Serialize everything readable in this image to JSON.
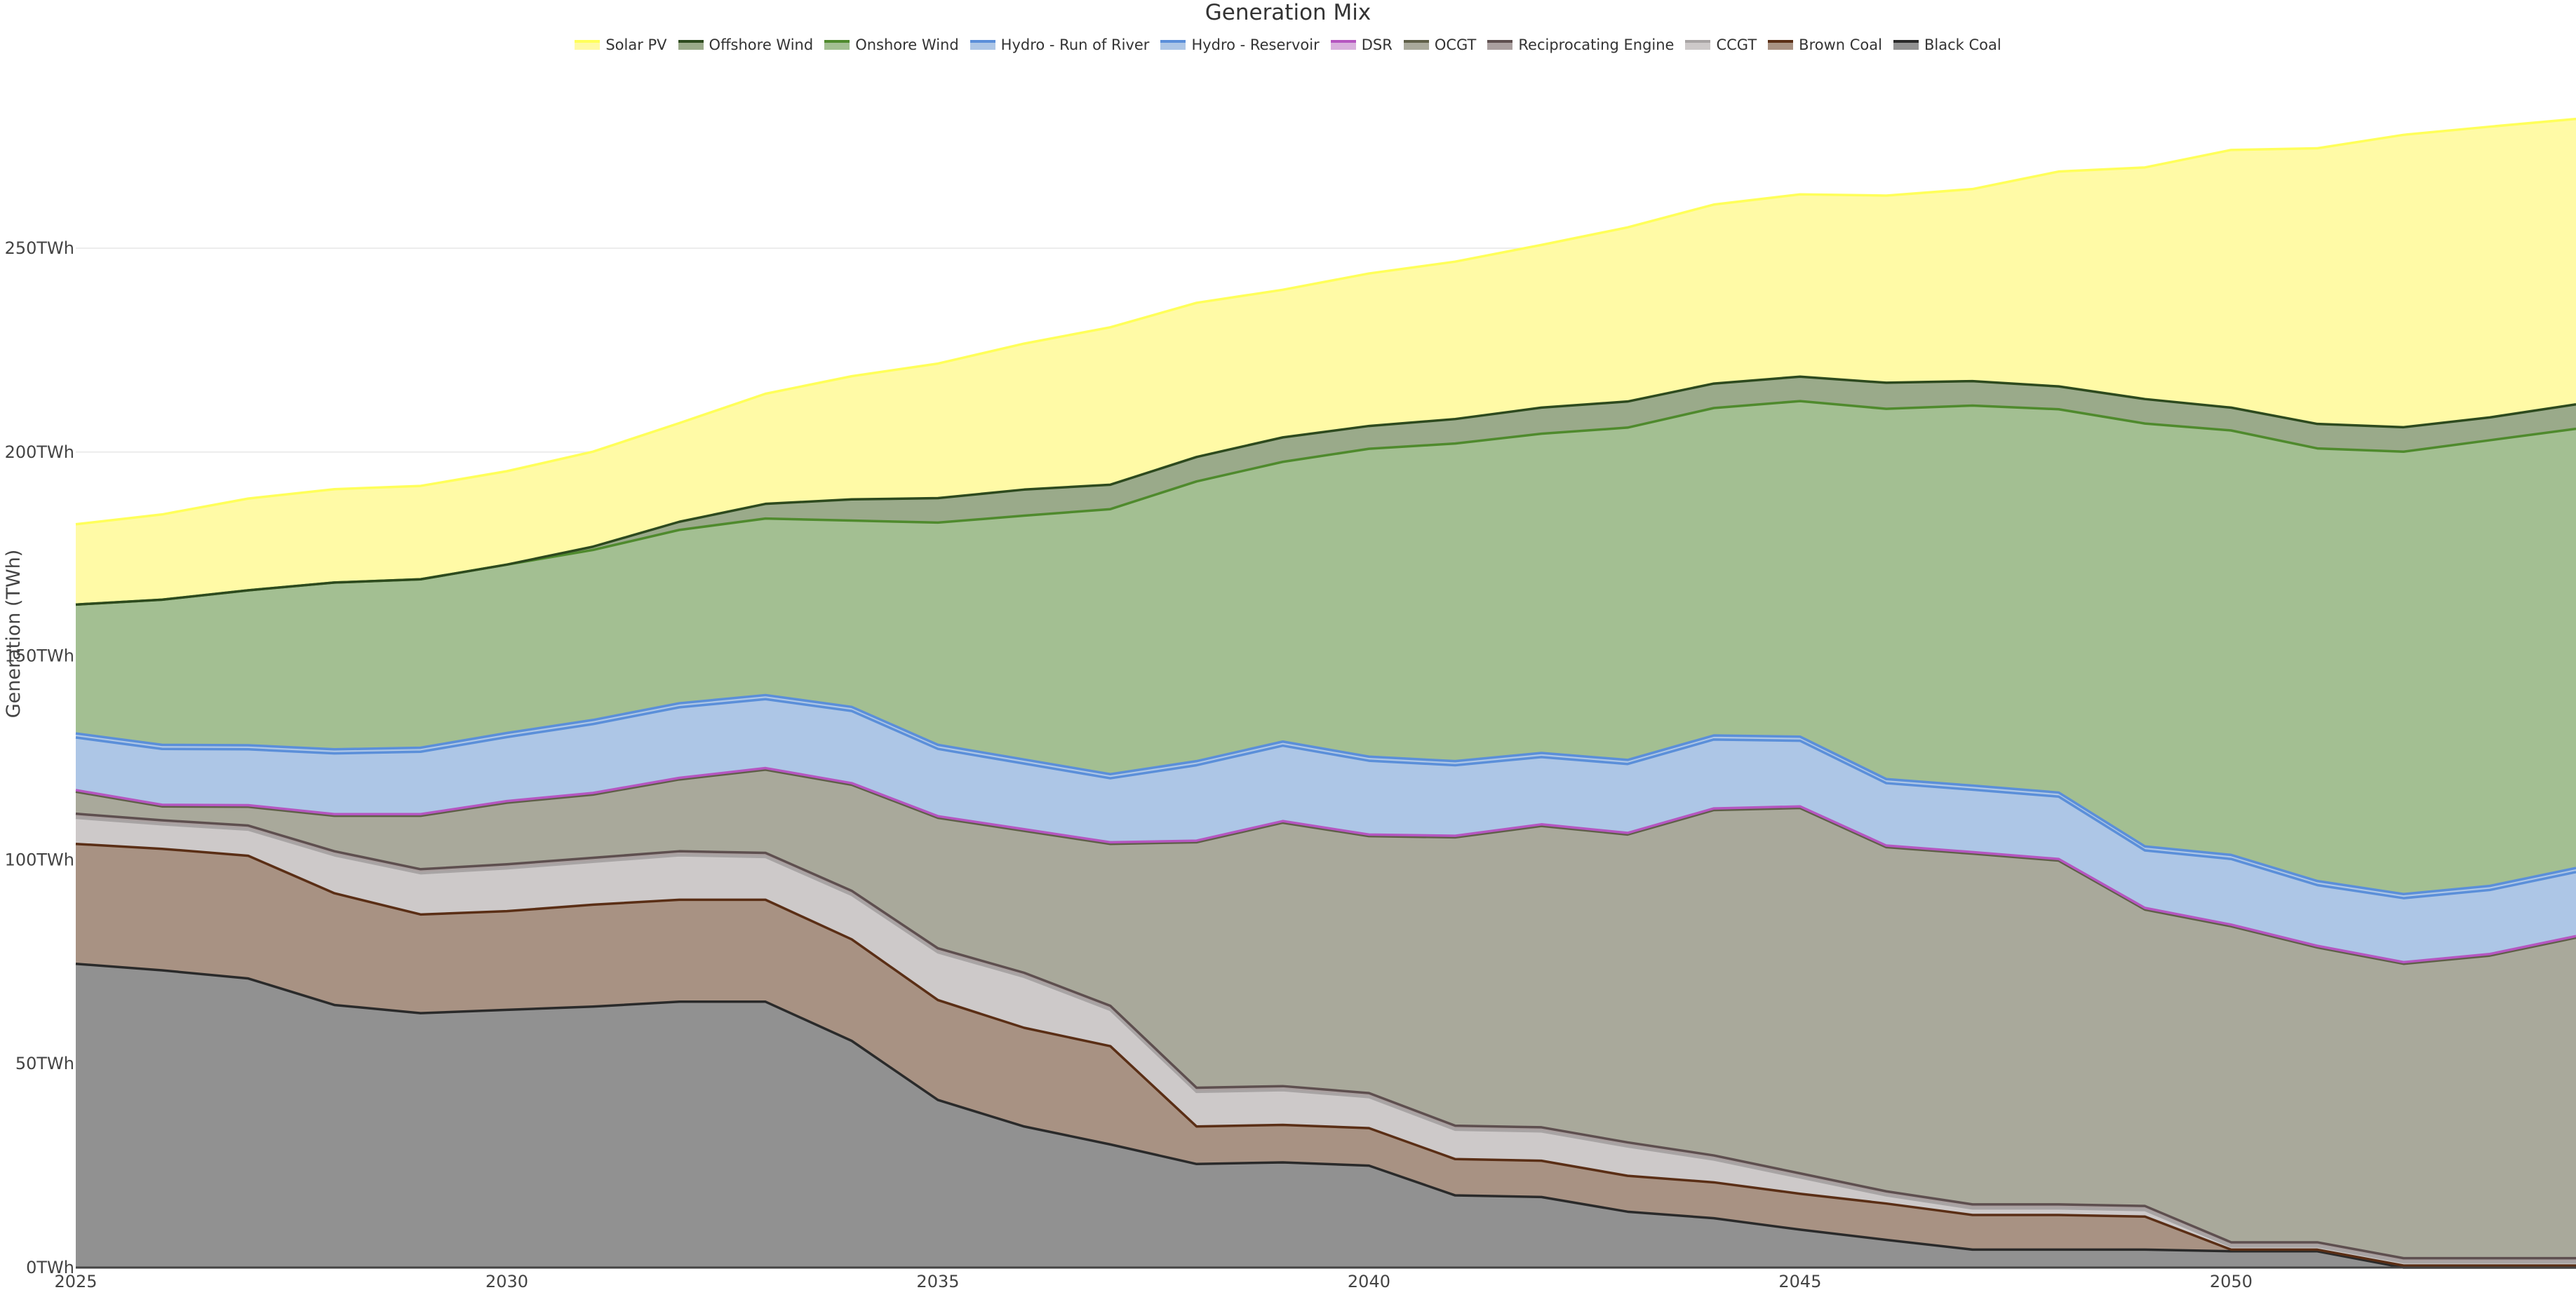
{
  "chart_data": {
    "type": "area",
    "stacked": true,
    "title": "Generation Mix",
    "xlabel": "",
    "ylabel": "Generation (TWh)",
    "ylim": [
      0,
      311
    ],
    "xlim": [
      2025,
      2054
    ],
    "grid": true,
    "legend_position": "top-center",
    "x_ticks": [
      2025,
      2030,
      2035,
      2040,
      2045,
      2050
    ],
    "x_tick_labels": [
      "2025",
      "2030",
      "2035",
      "2040",
      "2045",
      "2050"
    ],
    "y_ticks": [
      0,
      50,
      100,
      150,
      200,
      250
    ],
    "y_tick_labels": [
      "0TWh",
      "50TWh",
      "100TWh",
      "150TWh",
      "200TWh",
      "250TWh"
    ],
    "x": [
      2025,
      2026,
      2027,
      2028,
      2029,
      2030,
      2031,
      2032,
      2033,
      2034,
      2035,
      2036,
      2037,
      2038,
      2039,
      2040,
      2041,
      2042,
      2043,
      2044,
      2045,
      2046,
      2047,
      2048,
      2049,
      2050,
      2051,
      2052,
      2053,
      2054
    ],
    "series": [
      {
        "name": "Black Coal",
        "line": "#2a2a2a",
        "fill": "#919191",
        "values": [
          74.5,
          72.9,
          70.9,
          64.4,
          62.4,
          63.2,
          64.0,
          65.2,
          65.2,
          55.6,
          41.1,
          34.6,
          30.2,
          25.4,
          25.8,
          25.0,
          17.7,
          17.3,
          13.7,
          12.1,
          9.3,
          6.8,
          4.4,
          4.4,
          4.4,
          4.0,
          4.0,
          0,
          0,
          0
        ]
      },
      {
        "name": "Brown Coal",
        "line": "#5a2e15",
        "fill": "#a89283",
        "values": [
          29.4,
          29.8,
          30.1,
          27.4,
          24.2,
          24.2,
          25.0,
          25.0,
          25.0,
          24.9,
          24.5,
          24.2,
          24.1,
          9.2,
          9.2,
          9.2,
          8.9,
          8.9,
          8.8,
          8.8,
          8.8,
          8.9,
          8.5,
          8.5,
          8.1,
          0.4,
          0.4,
          0.5,
          0.5,
          0.5
        ]
      },
      {
        "name": "CCGT",
        "line": "#a8a4a4",
        "fill": "#cdc9c9",
        "values": [
          6.4,
          6.0,
          6.4,
          9.3,
          10.1,
          10.5,
          10.5,
          10.9,
          10.5,
          10.9,
          11.7,
          12.5,
          8.9,
          8.5,
          8.5,
          7.6,
          7.2,
          7.2,
          7.2,
          5.6,
          4.0,
          2.0,
          1.6,
          1.6,
          1.6,
          0.8,
          0.8,
          0.8,
          0.8,
          0.8
        ]
      },
      {
        "name": "Reciprocating Engine",
        "line": "#5e4f4f",
        "fill": "#aaa0a0",
        "values": [
          1.0,
          1.0,
          1.0,
          1.0,
          1.0,
          1.0,
          1.0,
          1.0,
          1.0,
          1.0,
          1.0,
          1.0,
          1.0,
          1.0,
          1.0,
          1.0,
          1.0,
          1.0,
          1.0,
          1.0,
          1.0,
          1.0,
          1.0,
          1.0,
          1.0,
          1.0,
          1.0,
          1.0,
          1.0,
          1.0
        ]
      },
      {
        "name": "OCGT",
        "line": "#5f5f48",
        "fill": "#a9a99b",
        "values": [
          5.4,
          3.4,
          4.6,
          8.7,
          13.1,
          15.1,
          15.5,
          17.6,
          20.4,
          26.0,
          32.0,
          34.8,
          39.7,
          60.2,
          64.6,
          63.0,
          70.7,
          73.9,
          75.5,
          84.7,
          89.6,
          84.4,
          86.0,
          84.3,
          72.7,
          77.5,
          72.3,
          72.2,
          74.2,
          78.6
        ]
      },
      {
        "name": "DSR",
        "line": "#b556c0",
        "fill": "#d9b0dd",
        "values": [
          0.4,
          0.4,
          0.4,
          0.4,
          0.4,
          0.4,
          0.4,
          0.4,
          0.4,
          0.4,
          0.4,
          0.4,
          0.4,
          0.4,
          0.4,
          0.4,
          0.4,
          0.4,
          0.4,
          0.4,
          0.4,
          0.4,
          0.4,
          0.4,
          0.4,
          0.4,
          0.4,
          0.4,
          0.4,
          0.4
        ]
      },
      {
        "name": "Hydro - Reservoir",
        "line": "#5b8fd9",
        "fill": "#adc6e6",
        "values": [
          12.9,
          13.7,
          13.7,
          14.9,
          15.3,
          15.7,
          16.9,
          17.3,
          16.9,
          17.7,
          16.5,
          16.1,
          15.7,
          18.5,
          18.5,
          18.1,
          17.3,
          16.5,
          16.9,
          16.9,
          16.1,
          15.3,
          15.3,
          15.3,
          14.1,
          16.1,
          14.9,
          15.7,
          15.7,
          15.7
        ]
      },
      {
        "name": "Hydro - Run of River",
        "line": "#5b8fd9",
        "fill": "#adc6e6",
        "values": [
          1.0,
          1.0,
          1.0,
          1.0,
          1.0,
          1.0,
          1.0,
          1.0,
          1.0,
          1.0,
          1.0,
          1.0,
          1.0,
          1.0,
          1.0,
          1.0,
          1.0,
          1.0,
          1.0,
          1.0,
          1.0,
          1.0,
          1.0,
          1.0,
          1.0,
          1.0,
          1.0,
          1.0,
          1.0,
          1.0
        ]
      },
      {
        "name": "Onshore Wind",
        "line": "#4f8a2d",
        "fill": "#a3bf92",
        "values": [
          31.6,
          35.6,
          38.0,
          40.9,
          41.3,
          41.3,
          41.7,
          42.5,
          43.3,
          45.7,
          54.5,
          59.8,
          65.0,
          68.6,
          68.6,
          75.5,
          77.9,
          78.3,
          81.5,
          80.3,
          82.3,
          90.8,
          93.2,
          94.0,
          103.7,
          104.1,
          106.1,
          108.5,
          109.3,
          107.7
        ]
      },
      {
        "name": "Offshore Wind",
        "line": "#2d4a1e",
        "fill": "#9aaa8a",
        "values": [
          0,
          0,
          0,
          0,
          0,
          0,
          0.8,
          2.0,
          3.6,
          5.2,
          6.0,
          6.4,
          6.0,
          6.0,
          6.0,
          5.6,
          6.0,
          6.4,
          6.4,
          6.0,
          6.0,
          6.4,
          6.0,
          5.6,
          6.0,
          5.6,
          6.0,
          6.0,
          5.6,
          6.0
        ]
      },
      {
        "name": "Solar PV",
        "line": "#ffff5a",
        "fill": "#fffaa6",
        "values": [
          19.7,
          20.9,
          22.5,
          22.9,
          22.9,
          22.9,
          23.3,
          24.2,
          27.0,
          30.2,
          33.0,
          35.8,
          38.6,
          37.8,
          36.2,
          37.4,
          38.6,
          39.9,
          42.7,
          43.9,
          44.7,
          45.9,
          47.1,
          52.7,
          56.8,
          63.2,
          67.6,
          71.7,
          71.3,
          70.0
        ]
      }
    ],
    "legend_order": [
      "Solar PV",
      "Offshore Wind",
      "Onshore Wind",
      "Hydro - Run of River",
      "Hydro - Reservoir",
      "DSR",
      "OCGT",
      "Reciprocating Engine",
      "CCGT",
      "Brown Coal",
      "Black Coal"
    ]
  }
}
